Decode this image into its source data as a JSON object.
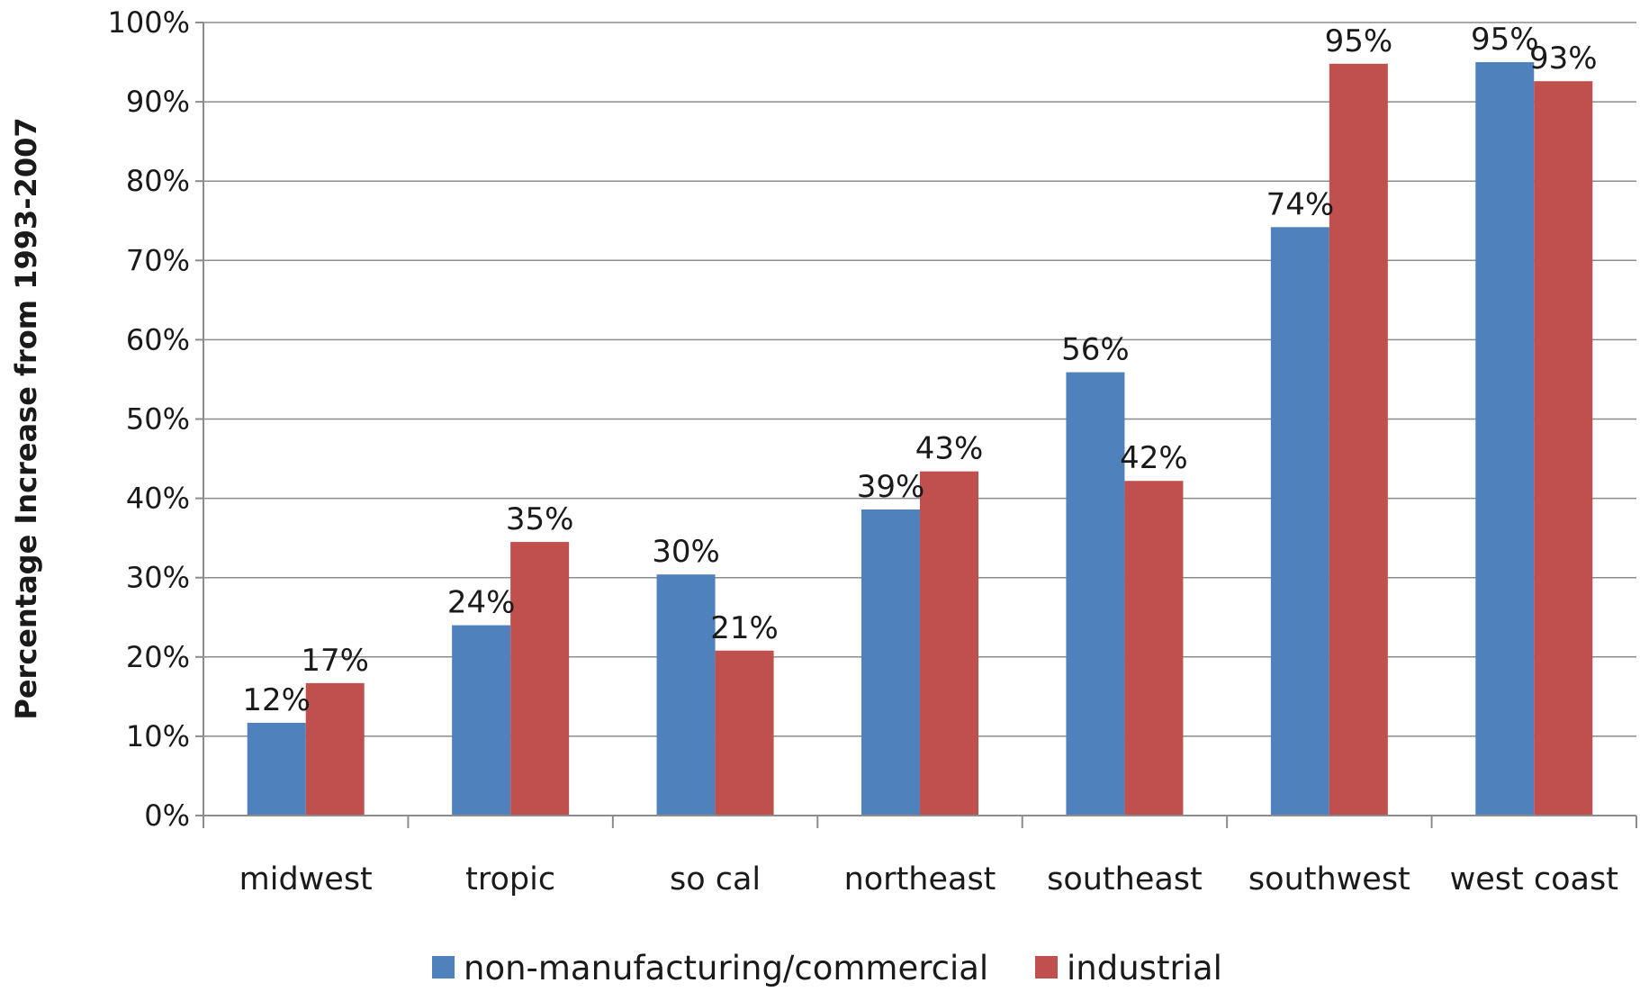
{
  "chart_data": {
    "type": "bar",
    "title": "",
    "xlabel": "",
    "ylabel": "Percentage Increase from 1993-2007",
    "ylim": [
      0,
      100
    ],
    "yticks": [
      0,
      10,
      20,
      30,
      40,
      50,
      60,
      70,
      80,
      90,
      100
    ],
    "ytick_suffix": "%",
    "grid": true,
    "legend_position": "bottom",
    "categories": [
      "midwest",
      "tropic",
      "so cal",
      "northeast",
      "southeast",
      "southwest",
      "west coast"
    ],
    "series": [
      {
        "name": "non-manufacturing/commercial",
        "color": "#4f81bd",
        "values": [
          11.7,
          24,
          30.4,
          38.6,
          55.9,
          74.2,
          95
        ],
        "labels": [
          "12%",
          "24%",
          "30%",
          "39%",
          "56%",
          "74%",
          "95%"
        ]
      },
      {
        "name": "industrial",
        "color": "#c0504d",
        "values": [
          16.7,
          34.5,
          20.8,
          43.4,
          42.2,
          94.8,
          92.6
        ],
        "labels": [
          "17%",
          "35%",
          "21%",
          "43%",
          "42%",
          "95%",
          "93%"
        ]
      }
    ]
  }
}
